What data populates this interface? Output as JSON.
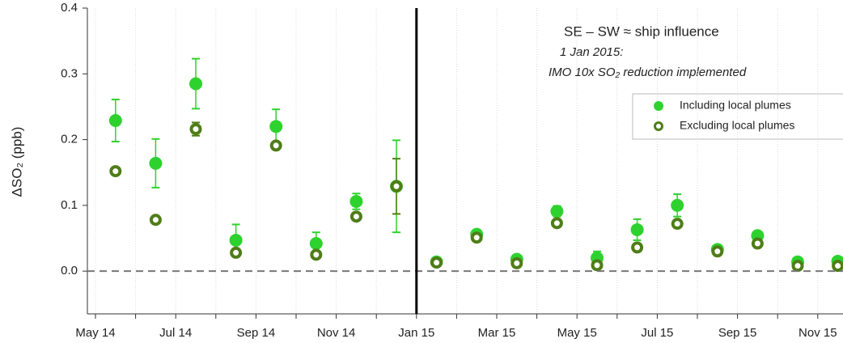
{
  "chart_data": {
    "type": "scatter",
    "y_label": "ΔSO₂ (ppb)",
    "annotations": [
      "SE – SW ≈ ship influence",
      "1 Jan 2015:",
      "IMO 10x SO₂ reduction implemented"
    ],
    "categories": [
      "May 14",
      null,
      "Jul 14",
      null,
      "Sep 14",
      null,
      "Nov 14",
      null,
      "Jan 15",
      null,
      "Mar 15",
      null,
      "May 15",
      null,
      "Jul 15",
      null,
      "Sep 15",
      null,
      "Nov 15"
    ],
    "series": [
      {
        "name": "Including local plumes",
        "color": "#2ed22e",
        "marker": "filled",
        "values": [
          0.229,
          0.164,
          0.285,
          0.047,
          0.22,
          0.042,
          0.106,
          0.129,
          0.014,
          0.056,
          0.018,
          0.091,
          0.02,
          0.063,
          0.1,
          0.033,
          0.054,
          0.014,
          0.015
        ],
        "errors": [
          0.032,
          0.037,
          0.038,
          0.024,
          0.026,
          0.017,
          0.012,
          0.07,
          0.005,
          0.005,
          0.005,
          0.008,
          0.01,
          0.016,
          0.017,
          0.004,
          0.006,
          0.004,
          0.004
        ]
      },
      {
        "name": "Excluding local plumes",
        "color": "#4f7d18",
        "marker": "open",
        "values": [
          0.152,
          0.078,
          0.216,
          0.028,
          0.191,
          0.025,
          0.083,
          0.129,
          0.013,
          0.051,
          0.012,
          0.073,
          0.009,
          0.036,
          0.072,
          0.03,
          0.042,
          0.008,
          0.008
        ],
        "errors": [
          0.004,
          0.004,
          0.01,
          0.004,
          0.004,
          0.004,
          0.005,
          0.042,
          0.004,
          0.004,
          0.004,
          0.004,
          0.004,
          0.004,
          0.005,
          0.004,
          0.004,
          0.004,
          0.004
        ]
      }
    ],
    "ylim": [
      -0.065,
      0.4
    ],
    "yticks": [
      {
        "value": 0,
        "label": "0.0"
      },
      0.1,
      0.2,
      0.3,
      0.4
    ],
    "grid": true
  }
}
